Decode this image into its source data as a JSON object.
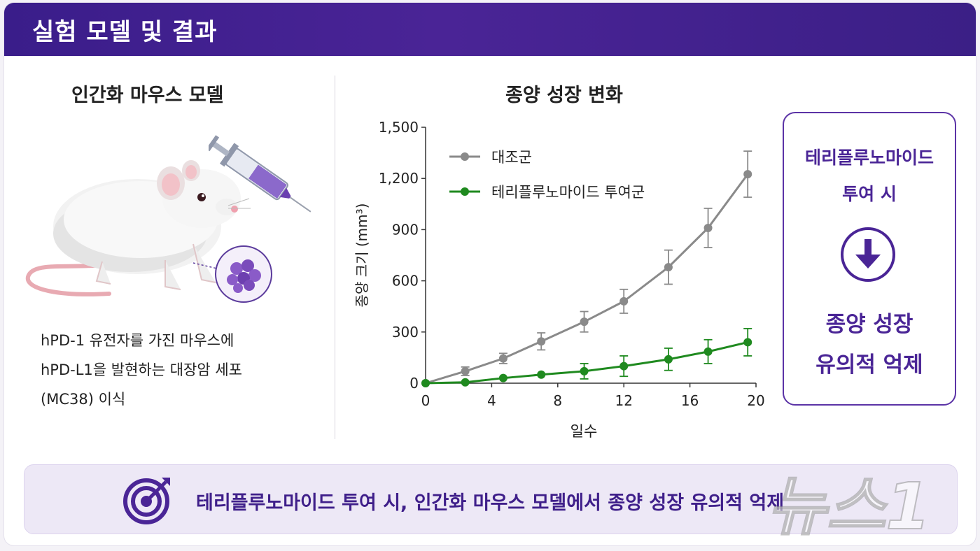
{
  "header": {
    "title": "실험 모델 및 결과"
  },
  "left_panel": {
    "title": "인간화 마우스 모델",
    "description": [
      "hPD-1 유전자를 가진 마우스에",
      "hPD-L1을 발현하는 대장암 세포",
      "(MC38) 이식"
    ]
  },
  "chart_panel": {
    "title": "종양 성장 변화"
  },
  "chart_data": {
    "type": "line",
    "xlabel": "일수",
    "ylabel": "종양 크기 (mm³)",
    "xlim": [
      0,
      20
    ],
    "ylim": [
      0,
      1500
    ],
    "x_ticks": [
      "0",
      "4",
      "8",
      "12",
      "16",
      "20"
    ],
    "y_ticks": [
      "0",
      "300",
      "600",
      "900",
      "1,200",
      "1,500"
    ],
    "legend_position": "top-left",
    "series": [
      {
        "name": "대조군",
        "color": "#8a8a8a",
        "x": [
          0,
          2.4,
          4.7,
          7.0,
          9.6,
          12.0,
          14.7,
          17.1,
          19.5
        ],
        "y": [
          0,
          70,
          145,
          245,
          360,
          480,
          680,
          910,
          1225
        ],
        "err": [
          0,
          25,
          30,
          50,
          60,
          70,
          100,
          115,
          135
        ]
      },
      {
        "name": "테리플루노마이드 투여군",
        "color": "#1f8a1f",
        "x": [
          0,
          2.4,
          4.7,
          7.0,
          9.6,
          12.0,
          14.7,
          17.1,
          19.5
        ],
        "y": [
          0,
          5,
          30,
          50,
          70,
          100,
          140,
          185,
          240
        ],
        "err": [
          0,
          0,
          0,
          0,
          45,
          60,
          65,
          70,
          80
        ]
      }
    ]
  },
  "result_box": {
    "line1": "테리플루노마이드",
    "line2": "투여 시",
    "line3": "종양 성장",
    "line4": "유의적 억제",
    "icon": "down-arrow-icon"
  },
  "bottom": {
    "icon": "target-icon",
    "text": "테리플루노마이드 투여 시, 인간화 마우스 모델에서 종양 성장 유의적 억제"
  },
  "watermark": {
    "text": "뉴스1"
  },
  "colors": {
    "accent": "#4a2596",
    "control": "#8a8a8a",
    "treated": "#1f8a1f"
  }
}
